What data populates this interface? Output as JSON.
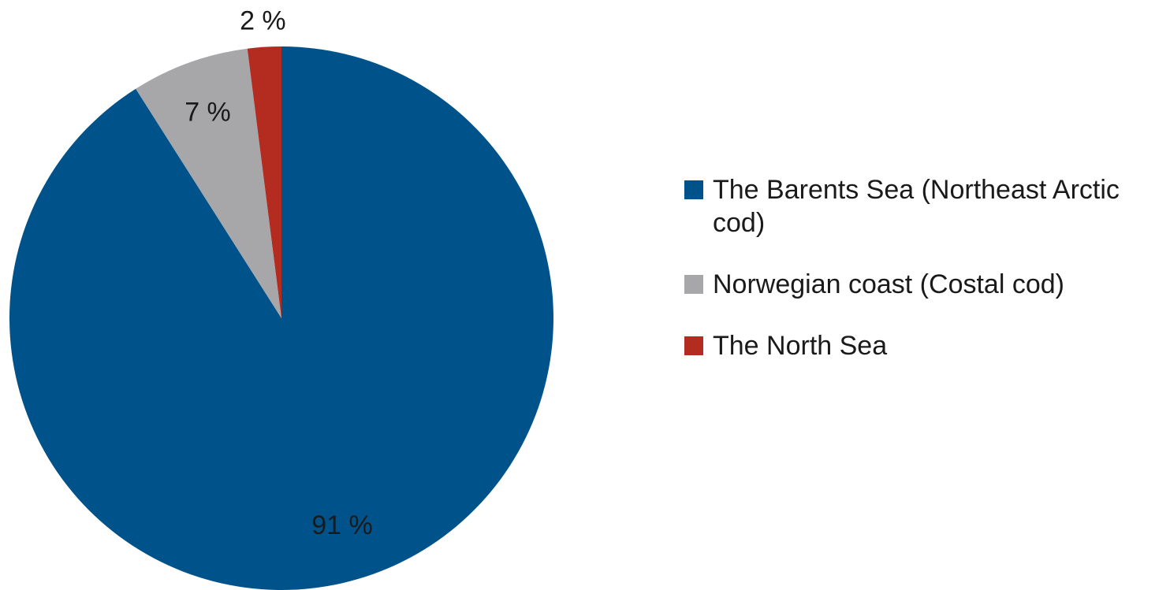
{
  "chart_data": {
    "type": "pie",
    "categories": [
      "The Barents Sea (Northeast Arctic cod)",
      "Norwegian coast (Costal cod)",
      "The North Sea"
    ],
    "values": [
      91,
      7,
      2
    ],
    "value_labels": [
      "91 %",
      "7 %",
      "2 %"
    ],
    "colors": [
      "#00538a",
      "#a7a7a9",
      "#b42b20"
    ],
    "legend": "right"
  }
}
